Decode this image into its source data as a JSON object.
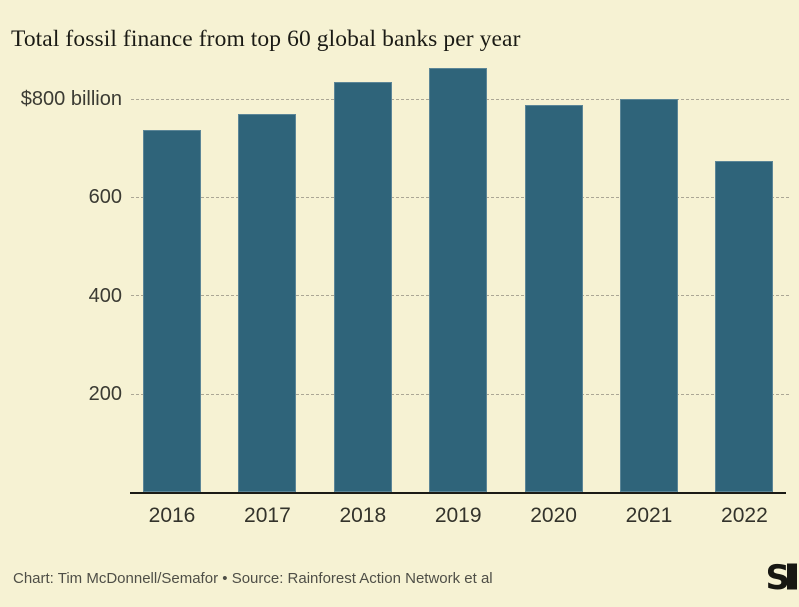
{
  "title": "Total fossil finance from top 60 global banks per year",
  "footer": {
    "credit": "Chart: Tim McDonnell/Semafor",
    "separator": "•",
    "source": "Source: Rainforest Action Network et al",
    "logo_name": "semafor-logo"
  },
  "colors": {
    "background": "#F6F2D3",
    "bar": "#2F647A",
    "gridline": "#ABA795",
    "axis": "#1B1B15",
    "title_text": "#1B1B15",
    "tick_text": "#3B3B33",
    "footer_text": "#4F4F47",
    "logo": "#171712"
  },
  "chart_data": {
    "type": "bar",
    "categories": [
      "2016",
      "2017",
      "2018",
      "2019",
      "2020",
      "2021",
      "2022"
    ],
    "values": [
      736,
      769,
      834,
      864,
      788,
      801,
      674
    ],
    "series_name": "Total fossil finance ($ billion)",
    "title": "Total fossil finance from top 60 global banks per year",
    "xlabel": "",
    "ylabel": "$ billion",
    "y_ticks": [
      {
        "value": 800,
        "label": "$800 billion"
      },
      {
        "value": 600,
        "label": "600"
      },
      {
        "value": 400,
        "label": "400"
      },
      {
        "value": 200,
        "label": "200"
      }
    ],
    "ylim": [
      0,
      880
    ],
    "grid": "horizontal-dashed",
    "legend": "none"
  }
}
